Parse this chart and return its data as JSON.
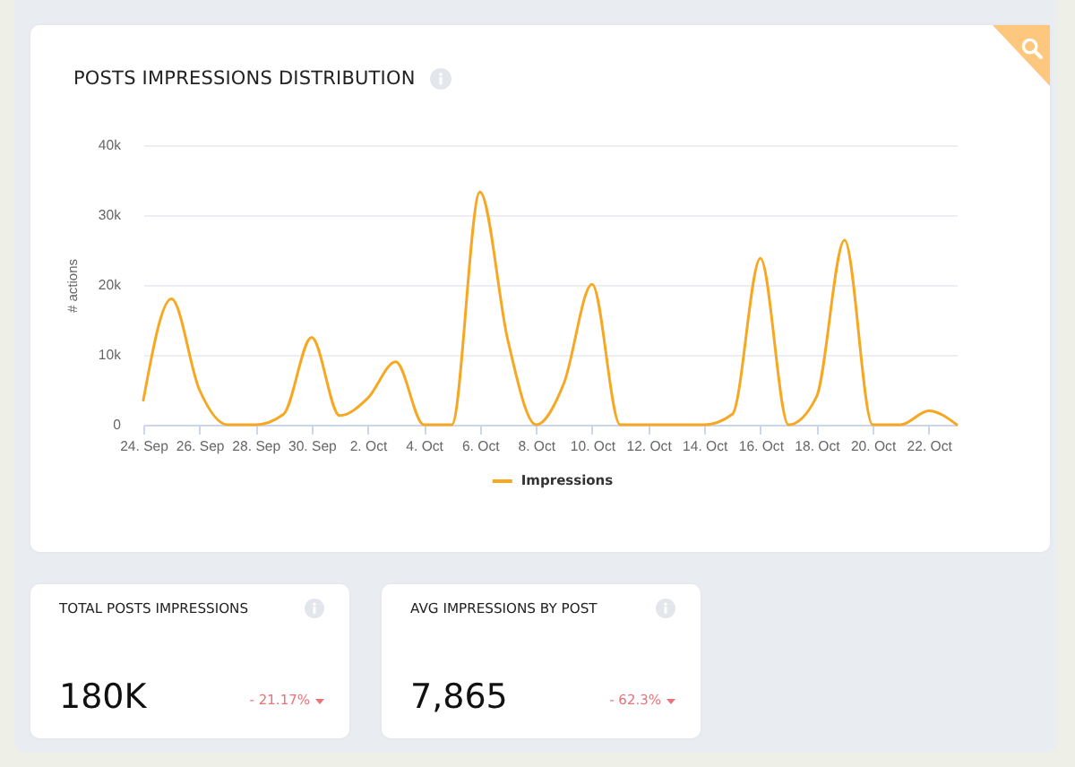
{
  "chart_data": [
    {
      "type": "line",
      "title": "POSTS IMPRESSIONS DISTRIBUTION",
      "ylabel": "# actions",
      "x": [
        "--09-24",
        "--09-25",
        "--09-26",
        "--09-27",
        "--09-28",
        "--09-29",
        "--09-30",
        "--10-01",
        "--10-02",
        "--10-03",
        "--10-04",
        "--10-05",
        "--10-06",
        "--10-07",
        "--10-08",
        "--10-09",
        "--10-10",
        "--10-11",
        "--10-12",
        "--10-13",
        "--10-14",
        "--10-15",
        "--10-16",
        "--10-17",
        "--10-18",
        "--10-19",
        "--10-20",
        "--10-21",
        "--10-22",
        "--10-23"
      ],
      "series": [
        {
          "name": "Impressions",
          "color": "#f7a823",
          "values": [
            3500,
            18000,
            5000,
            0,
            0,
            1500,
            12500,
            1300,
            3800,
            9000,
            0,
            0,
            33300,
            12000,
            0,
            6000,
            20100,
            0,
            0,
            0,
            0,
            1500,
            23800,
            0,
            4000,
            26400,
            0,
            0,
            2000,
            0
          ]
        }
      ],
      "xlim": [
        "--09-24",
        "--10-23"
      ],
      "ylim": [
        0,
        40000
      ],
      "xticks": [
        {
          "value": "--09-24",
          "label": "24. Sep"
        },
        {
          "value": "--09-26",
          "label": "26. Sep"
        },
        {
          "value": "--09-28",
          "label": "28. Sep"
        },
        {
          "value": "--09-30",
          "label": "30. Sep"
        },
        {
          "value": "--10-02",
          "label": "2. Oct"
        },
        {
          "value": "--10-04",
          "label": "4. Oct"
        },
        {
          "value": "--10-06",
          "label": "6. Oct"
        },
        {
          "value": "--10-08",
          "label": "8. Oct"
        },
        {
          "value": "--10-10",
          "label": "10. Oct"
        },
        {
          "value": "--10-12",
          "label": "12. Oct"
        },
        {
          "value": "--10-14",
          "label": "14. Oct"
        },
        {
          "value": "--10-16",
          "label": "16. Oct"
        },
        {
          "value": "--10-18",
          "label": "18. Oct"
        },
        {
          "value": "--10-20",
          "label": "20. Oct"
        },
        {
          "value": "--10-22",
          "label": "22. Oct"
        }
      ],
      "yticks": [
        0,
        {
          "value": 10000,
          "label": "10k"
        },
        {
          "value": 20000,
          "label": "20k"
        },
        {
          "value": 30000,
          "label": "30k"
        },
        {
          "value": 40000,
          "label": "40k"
        }
      ],
      "grid": "y",
      "legend": "bottom"
    },
    {
      "type": "other",
      "title": "TOTAL POSTS IMPRESSIONS",
      "annotations": [
        "180K",
        "- 21.17%"
      ]
    },
    {
      "type": "other",
      "title": "AVG IMPRESSIONS BY POST",
      "annotations": [
        "7,865",
        "- 62.3%"
      ]
    }
  ]
}
